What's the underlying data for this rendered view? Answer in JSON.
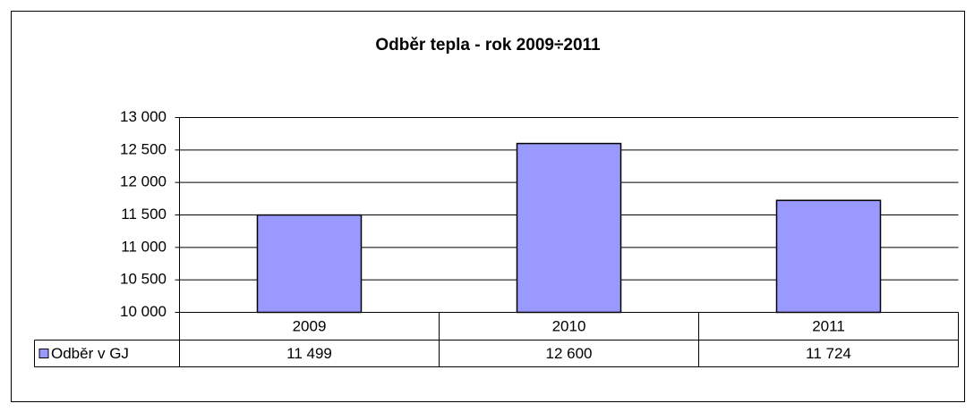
{
  "chart_data": {
    "type": "bar",
    "title": "Odběr tepla - rok 2009÷2011",
    "categories": [
      "2009",
      "2010",
      "2011"
    ],
    "series": [
      {
        "name": "Odběr v GJ",
        "color": "#9999ff",
        "values": [
          11499,
          12600,
          11724
        ],
        "value_labels": [
          "11 499",
          "12 600",
          "11 724"
        ]
      }
    ],
    "ylim": [
      10000,
      13000
    ],
    "yticks": [
      {
        "value": 10000,
        "label": "10 000"
      },
      {
        "value": 10500,
        "label": "10 500"
      },
      {
        "value": 11000,
        "label": "11 000"
      },
      {
        "value": 11500,
        "label": "11 500"
      },
      {
        "value": 12000,
        "label": "12 000"
      },
      {
        "value": 12500,
        "label": "12 500"
      },
      {
        "value": 13000,
        "label": "13 000"
      }
    ],
    "grid": true
  }
}
